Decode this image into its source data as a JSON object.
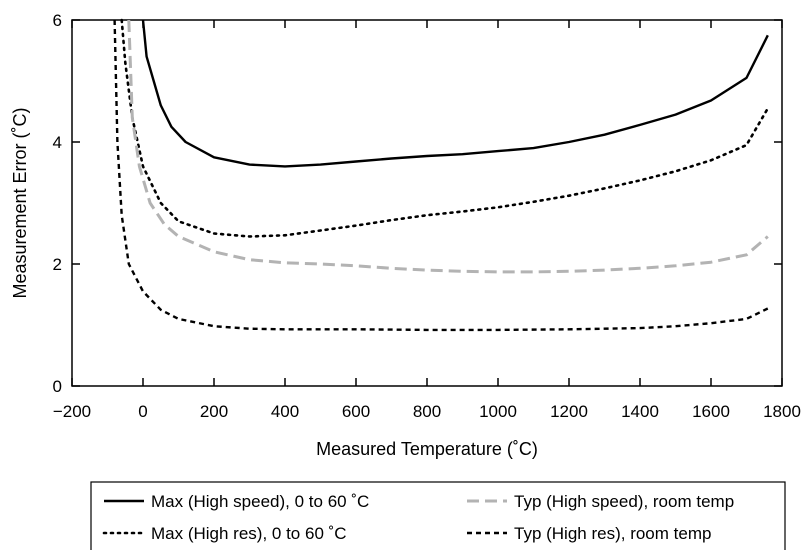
{
  "chart_data": {
    "type": "line",
    "xlabel": "Measured Temperature (˚C)",
    "ylabel": "Measurement Error (˚C)",
    "xlim": [
      -200,
      1800
    ],
    "ylim": [
      0,
      6
    ],
    "xticks": [
      -200,
      0,
      200,
      400,
      600,
      800,
      1000,
      1200,
      1400,
      1600,
      1800
    ],
    "xtick_labels": [
      "−200",
      "0",
      "200",
      "400",
      "600",
      "800",
      "1000",
      "1200",
      "1400",
      "1600",
      "1800"
    ],
    "yticks": [
      0,
      2,
      4,
      6
    ],
    "ytick_labels": [
      "0",
      "2",
      "4",
      "6"
    ],
    "grid": false,
    "legend_position": "bottom",
    "series": [
      {
        "name": "Max (High speed), 0 to 60 ˚C",
        "color": "#000000",
        "style": "solid",
        "points": [
          [
            0,
            6.0
          ],
          [
            10,
            5.4
          ],
          [
            30,
            5.0
          ],
          [
            50,
            4.6
          ],
          [
            80,
            4.25
          ],
          [
            120,
            4.0
          ],
          [
            200,
            3.75
          ],
          [
            300,
            3.63
          ],
          [
            400,
            3.6
          ],
          [
            500,
            3.63
          ],
          [
            600,
            3.68
          ],
          [
            700,
            3.73
          ],
          [
            800,
            3.77
          ],
          [
            900,
            3.8
          ],
          [
            1000,
            3.85
          ],
          [
            1100,
            3.9
          ],
          [
            1200,
            4.0
          ],
          [
            1300,
            4.12
          ],
          [
            1400,
            4.28
          ],
          [
            1500,
            4.45
          ],
          [
            1600,
            4.68
          ],
          [
            1700,
            5.05
          ],
          [
            1760,
            5.75
          ]
        ]
      },
      {
        "name": "Max (High res), 0 to 60 ˚C",
        "color": "#000000",
        "style": "dotted",
        "points": [
          [
            -60,
            6.0
          ],
          [
            -50,
            5.3
          ],
          [
            -30,
            4.4
          ],
          [
            0,
            3.6
          ],
          [
            50,
            3.0
          ],
          [
            100,
            2.7
          ],
          [
            200,
            2.5
          ],
          [
            300,
            2.45
          ],
          [
            400,
            2.47
          ],
          [
            500,
            2.55
          ],
          [
            600,
            2.63
          ],
          [
            700,
            2.72
          ],
          [
            800,
            2.8
          ],
          [
            900,
            2.86
          ],
          [
            1000,
            2.93
          ],
          [
            1100,
            3.02
          ],
          [
            1200,
            3.12
          ],
          [
            1300,
            3.24
          ],
          [
            1400,
            3.37
          ],
          [
            1500,
            3.52
          ],
          [
            1600,
            3.7
          ],
          [
            1700,
            3.95
          ],
          [
            1760,
            4.55
          ]
        ]
      },
      {
        "name": "Typ (High speed), room temp",
        "color": "#b3b3b3",
        "style": "dashed",
        "points": [
          [
            -40,
            6.0
          ],
          [
            -30,
            4.4
          ],
          [
            -10,
            3.6
          ],
          [
            20,
            3.0
          ],
          [
            60,
            2.65
          ],
          [
            100,
            2.45
          ],
          [
            200,
            2.2
          ],
          [
            300,
            2.07
          ],
          [
            400,
            2.02
          ],
          [
            500,
            2.0
          ],
          [
            600,
            1.97
          ],
          [
            700,
            1.93
          ],
          [
            800,
            1.9
          ],
          [
            900,
            1.88
          ],
          [
            1000,
            1.87
          ],
          [
            1100,
            1.87
          ],
          [
            1200,
            1.88
          ],
          [
            1300,
            1.9
          ],
          [
            1400,
            1.93
          ],
          [
            1500,
            1.97
          ],
          [
            1600,
            2.03
          ],
          [
            1700,
            2.15
          ],
          [
            1760,
            2.45
          ]
        ]
      },
      {
        "name": "Typ (High res), room temp",
        "color": "#000000",
        "style": "dashed",
        "points": [
          [
            -80,
            6.0
          ],
          [
            -72,
            4.0
          ],
          [
            -60,
            2.8
          ],
          [
            -40,
            2.0
          ],
          [
            0,
            1.55
          ],
          [
            50,
            1.25
          ],
          [
            100,
            1.1
          ],
          [
            200,
            0.98
          ],
          [
            300,
            0.94
          ],
          [
            400,
            0.93
          ],
          [
            600,
            0.93
          ],
          [
            800,
            0.92
          ],
          [
            1000,
            0.92
          ],
          [
            1200,
            0.93
          ],
          [
            1400,
            0.95
          ],
          [
            1500,
            0.98
          ],
          [
            1600,
            1.03
          ],
          [
            1700,
            1.1
          ],
          [
            1760,
            1.27
          ]
        ]
      }
    ]
  }
}
